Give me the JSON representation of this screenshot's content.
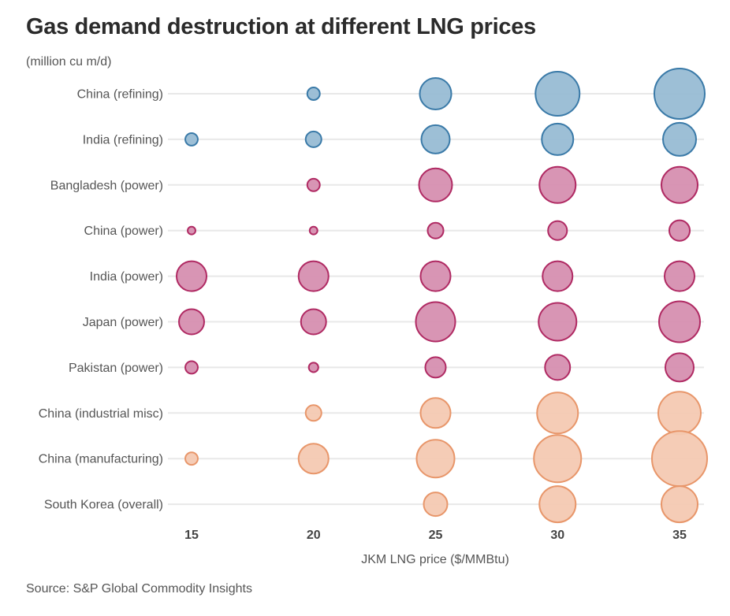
{
  "chart_data": {
    "type": "scatter",
    "subtype": "bubble",
    "title": "Gas demand destruction at different LNG prices",
    "subtitle": "(million cu m/d)",
    "xlabel": "JKM LNG price ($/MMBtu)",
    "ylabel": "",
    "source": "Source: S&P Global Commodity Insights",
    "x": [
      15,
      20,
      25,
      30,
      35
    ],
    "x_tick_labels": [
      "15",
      "20",
      "25",
      "30",
      "35"
    ],
    "grid": true,
    "legend": "none",
    "size_encoding": "bubble area proportional to value (values estimated from bubble sizes)",
    "categories": [
      "China (refining)",
      "India (refining)",
      "Bangladesh (power)",
      "China (power)",
      "India (power)",
      "Japan (power)",
      "Pakistan (power)",
      "China (industrial misc)",
      "China (manufacturing)",
      "South Korea (overall)"
    ],
    "series": [
      {
        "name": "China (refining)",
        "group": "refining",
        "values": [
          null,
          3.1,
          19.6,
          38.4,
          50.2
        ]
      },
      {
        "name": "India (refining)",
        "group": "refining",
        "values": [
          3.1,
          4.9,
          15.9,
          19.6,
          21.6
        ]
      },
      {
        "name": "Bangladesh (power)",
        "group": "power",
        "values": [
          null,
          3.1,
          21.6,
          25.9,
          25.9
        ]
      },
      {
        "name": "China (power)",
        "group": "power",
        "values": [
          1.2,
          1.2,
          4.9,
          7.1,
          8.3
        ]
      },
      {
        "name": "India (power)",
        "group": "power",
        "values": [
          17.7,
          17.7,
          17.7,
          17.7,
          17.7
        ]
      },
      {
        "name": "Japan (power)",
        "group": "power",
        "values": [
          12.5,
          12.5,
          30.6,
          28.2,
          33.1
        ]
      },
      {
        "name": "Pakistan (power)",
        "group": "power",
        "values": [
          3.1,
          1.8,
          8.3,
          12.5,
          15.9
        ]
      },
      {
        "name": "China (industrial misc)",
        "group": "industrial",
        "values": [
          null,
          4.9,
          17.7,
          33.1,
          35.7
        ]
      },
      {
        "name": "China (manufacturing)",
        "group": "industrial",
        "values": [
          3.1,
          17.7,
          28.2,
          44.1,
          60.0
        ]
      },
      {
        "name": "South Korea (overall)",
        "group": "industrial",
        "values": [
          null,
          null,
          11.0,
          25.9,
          25.9
        ]
      }
    ],
    "colors": {
      "refining": {
        "fill": "#98bcd4",
        "stroke": "#3a7aa8"
      },
      "power": {
        "fill": "#d68fb0",
        "stroke": "#b02a63"
      },
      "industrial": {
        "fill": "#f4c9b2",
        "stroke": "#e8966a"
      }
    }
  }
}
